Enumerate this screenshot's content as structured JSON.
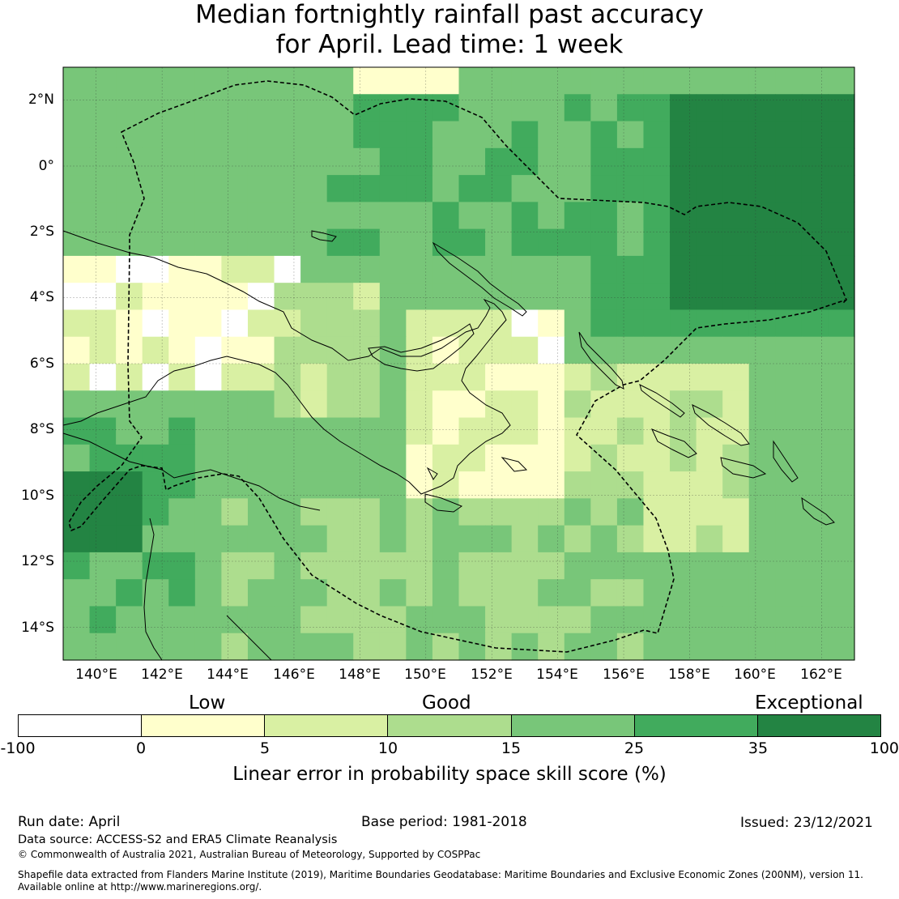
{
  "title": {
    "line1": "Median fortnightly rainfall past accuracy",
    "line2": "for April. Lead time: 1 week"
  },
  "map": {
    "region": "Papua New Guinea",
    "lon_range": [
      139,
      163
    ],
    "lat_range": [
      -15,
      3
    ],
    "lon_ticks": [
      "140°E",
      "142°E",
      "144°E",
      "146°E",
      "148°E",
      "150°E",
      "152°E",
      "154°E",
      "156°E",
      "158°E",
      "160°E",
      "162°E"
    ],
    "lat_ticks": [
      "2°N",
      "0°",
      "2°S",
      "4°S",
      "6°S",
      "8°S",
      "10°S",
      "12°S",
      "14°S"
    ],
    "gridlines": true,
    "eez_boundary": "dashed",
    "coastline": "black"
  },
  "legend": {
    "categories": [
      "Low",
      "Good",
      "Exceptional"
    ],
    "boundaries": [
      "-100",
      "0",
      "5",
      "10",
      "15",
      "25",
      "35",
      "100"
    ],
    "colors": [
      "#ffffff",
      "#ffffcc",
      "#d9f0a3",
      "#addd8e",
      "#78c679",
      "#41ab5d",
      "#238443"
    ],
    "title": "Linear error in probability space skill score (%)"
  },
  "footer": {
    "run_date": "Run date: April",
    "base_period": "Base period: 1981-2018",
    "issued": "Issued: 23/12/2021",
    "data_source": "Data source: ACCESS-S2 and ERA5 Climate Reanalysis",
    "copyright": "© Commonwealth of Australia 2021, Australian Bureau of Meteorology, Supported by COSPPac",
    "shapefile_line1": "Shapefile data extracted from Flanders Marine Institute (2019), Maritime Boundaries Geodatabase: Maritime Boundaries and Exclusive Economic Zones (200NM), version 11.",
    "shapefile_line2": "Available online at http://www.marineregions.org/."
  }
}
